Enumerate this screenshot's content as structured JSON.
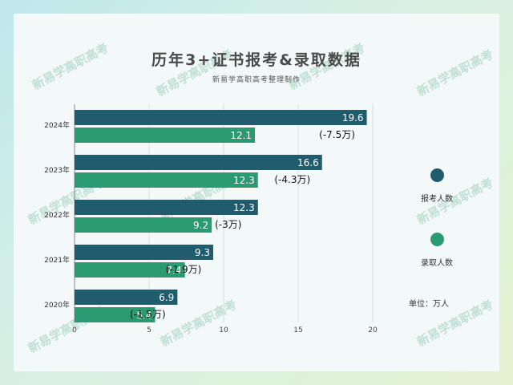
{
  "title": "历年3+证书报考&录取数据",
  "subtitle": "新易学高职高考整理制作",
  "unit_label": "单位：万人",
  "watermark_text": "新易学高职高考",
  "colors": {
    "applicants": "#1f5c6e",
    "admitted": "#2a9a72"
  },
  "chart_data": {
    "type": "bar",
    "orientation": "horizontal",
    "categories": [
      "2024年",
      "2023年",
      "2022年",
      "2021年",
      "2020年"
    ],
    "series": [
      {
        "name": "报考人数",
        "values": [
          19.6,
          16.6,
          12.3,
          9.3,
          6.9
        ]
      },
      {
        "name": "录取人数",
        "values": [
          12.1,
          12.3,
          9.2,
          7.4,
          5.4
        ]
      }
    ],
    "annotations": [
      "(-7.5万)",
      "(-4.3万)",
      "(-3万)",
      "(-1.9万)",
      "(-1.5万)"
    ],
    "xlim": [
      0,
      20
    ],
    "xticks": [
      "0",
      "5",
      "10",
      "15",
      "20"
    ],
    "grid": true,
    "legend": "right"
  }
}
